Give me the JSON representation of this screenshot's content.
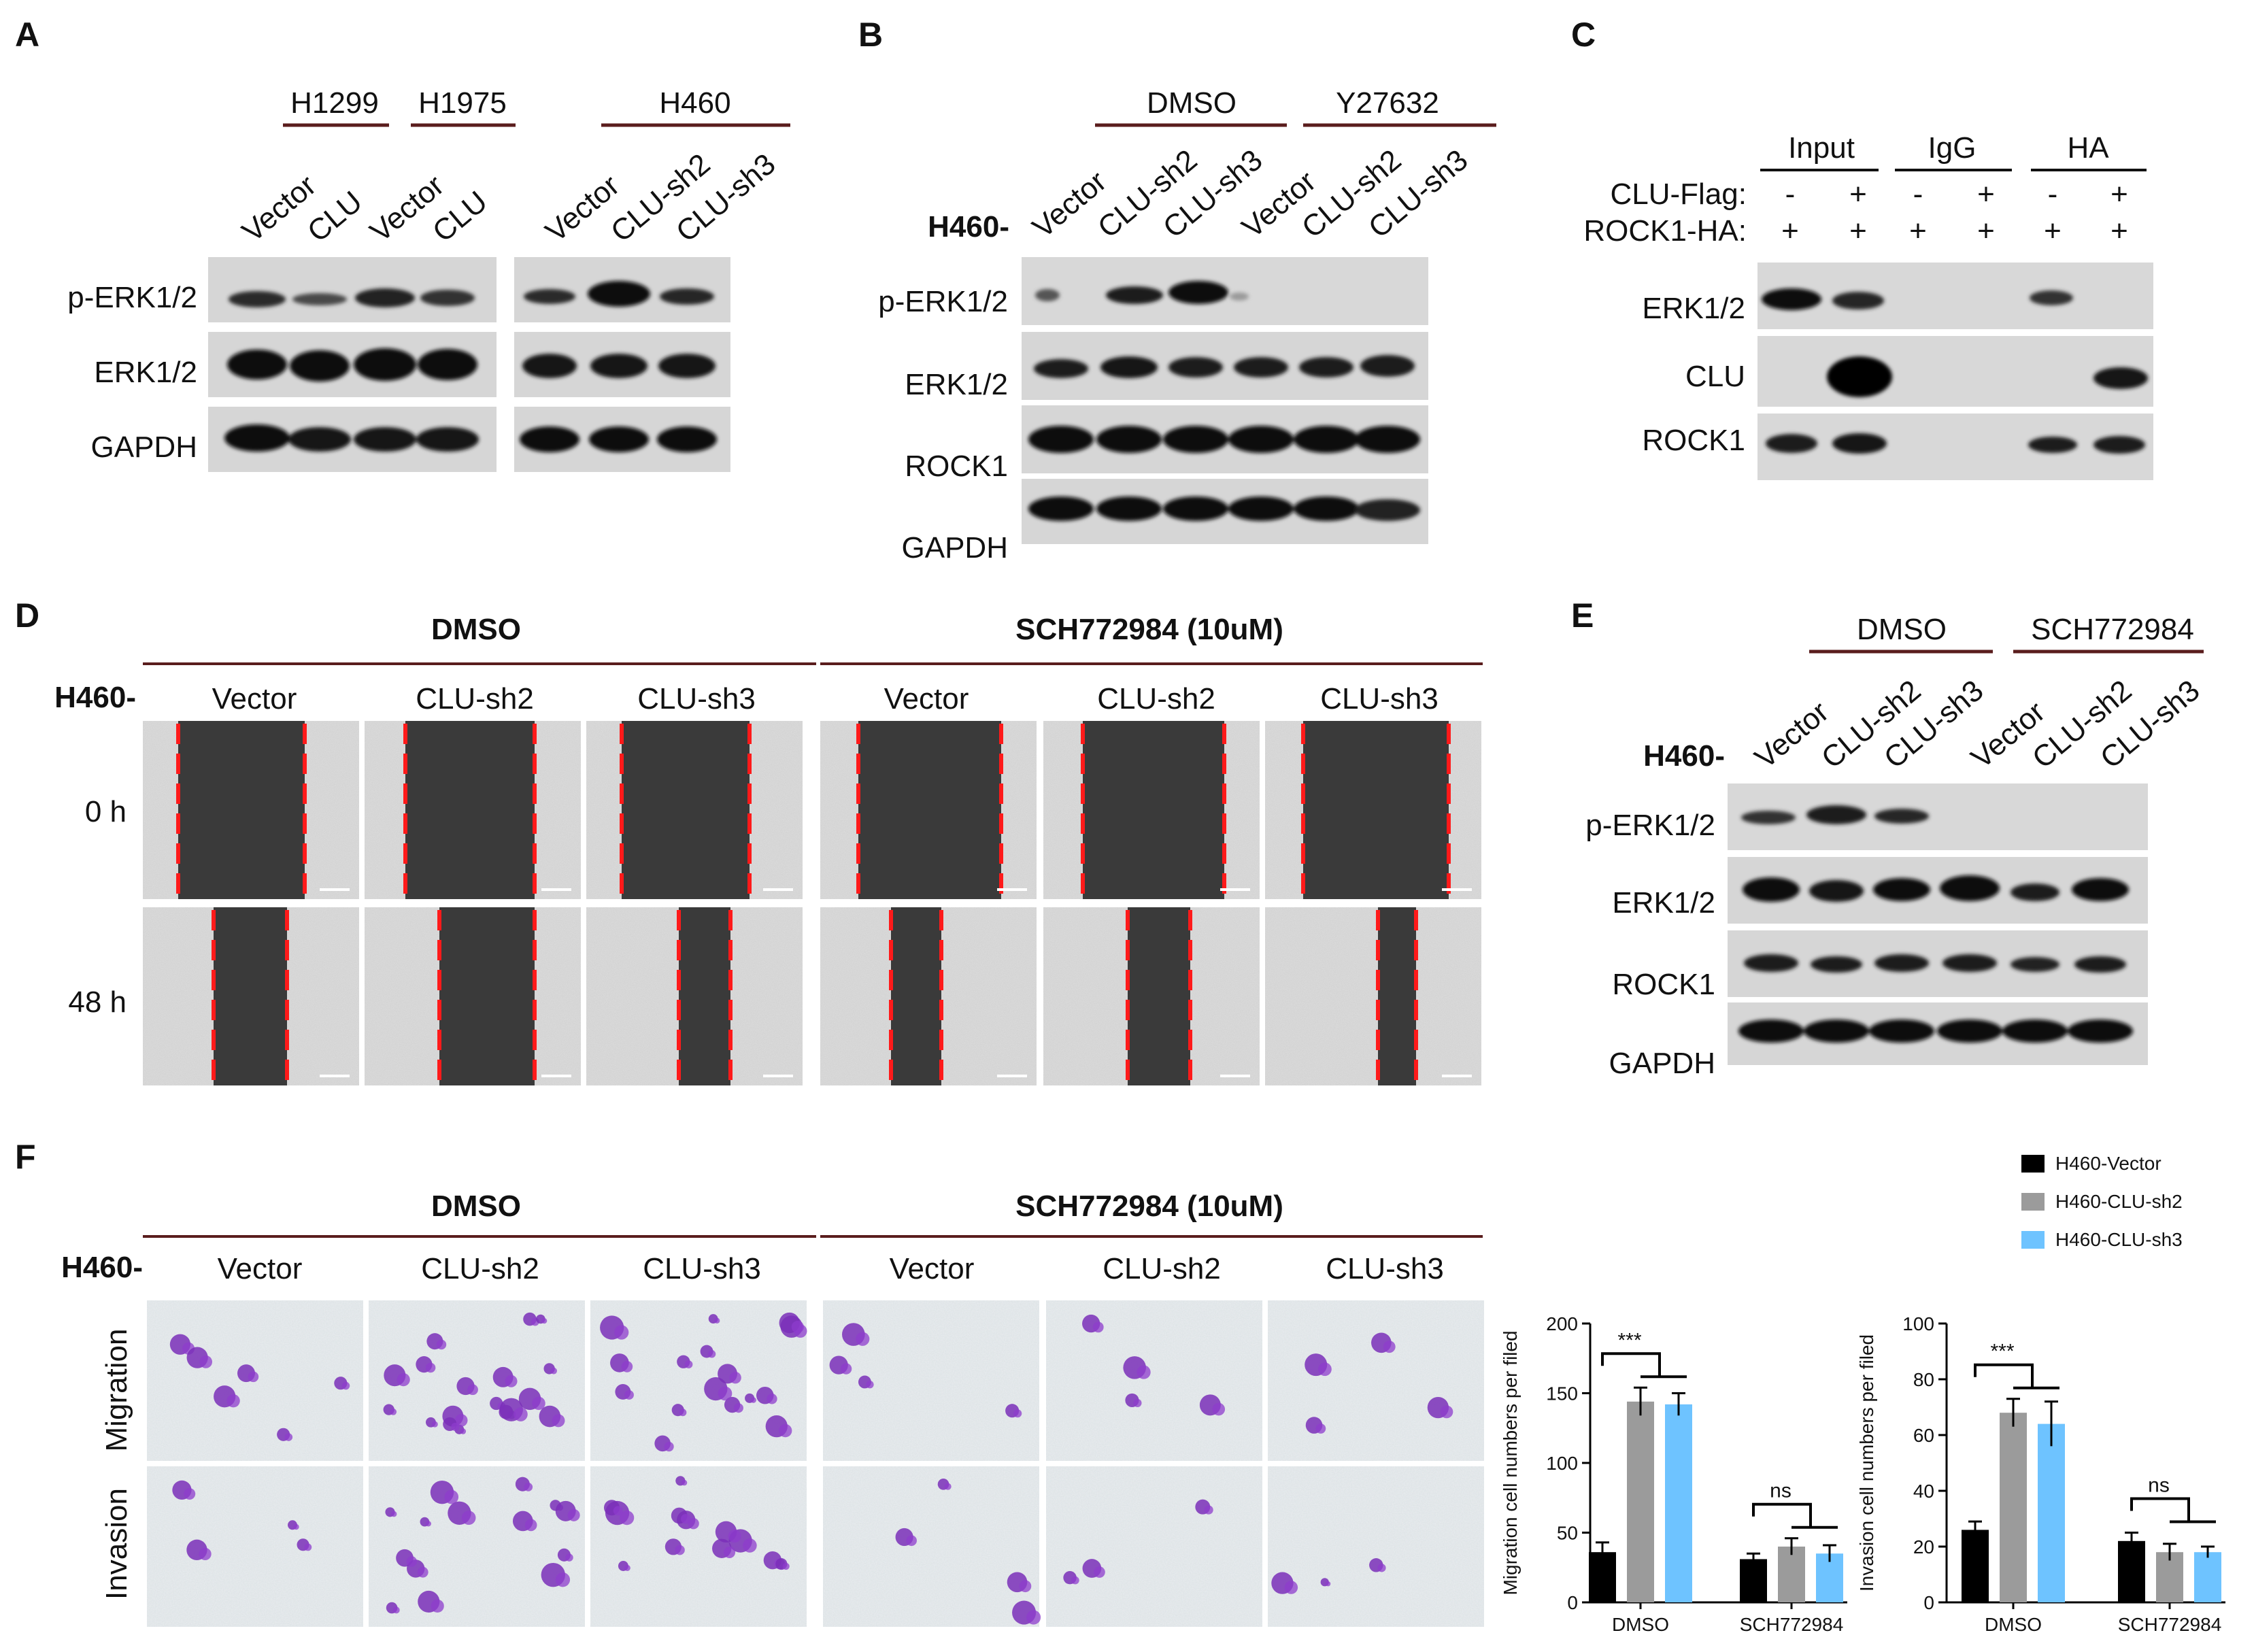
{
  "panel_labels": {
    "a": "A",
    "b": "B",
    "c": "C",
    "d": "D",
    "e": "E",
    "f": "F"
  },
  "panel_a": {
    "groups": [
      "H1299",
      "H1975",
      "H460"
    ],
    "lanes": [
      "Vector",
      "CLU",
      "Vector",
      "CLU",
      "Vector",
      "CLU-sh2",
      "CLU-sh3"
    ],
    "rows": [
      "p-ERK1/2",
      "ERK1/2",
      "GAPDH"
    ]
  },
  "panel_b": {
    "cell_prefix": "H460-",
    "groups": [
      "DMSO",
      "Y27632"
    ],
    "lanes": [
      "Vector",
      "CLU-sh2",
      "CLU-sh3",
      "Vector",
      "CLU-sh2",
      "CLU-sh3"
    ],
    "rows": [
      "p-ERK1/2",
      "ERK1/2",
      "ROCK1",
      "GAPDH"
    ]
  },
  "panel_c": {
    "groups": [
      "Input",
      "IgG",
      "HA"
    ],
    "conditions": [
      {
        "label": "CLU-Flag:",
        "values": [
          "-",
          "+",
          "-",
          "+",
          "-",
          "+"
        ]
      },
      {
        "label": "ROCK1-HA:",
        "values": [
          "+",
          "+",
          "+",
          "+",
          "+",
          "+"
        ]
      }
    ],
    "rows": [
      "ERK1/2",
      "CLU",
      "ROCK1"
    ]
  },
  "panel_d": {
    "cell_prefix": "H460-",
    "groups": [
      "DMSO",
      "SCH772984 (10uM)"
    ],
    "columns": [
      "Vector",
      "CLU-sh2",
      "CLU-sh3",
      "Vector",
      "CLU-sh2",
      "CLU-sh3"
    ],
    "rows": [
      "0 h",
      "48 h"
    ]
  },
  "panel_e": {
    "cell_prefix": "H460-",
    "groups": [
      "DMSO",
      "SCH772984"
    ],
    "lanes": [
      "Vector",
      "CLU-sh2",
      "CLU-sh3",
      "Vector",
      "CLU-sh2",
      "CLU-sh3"
    ],
    "rows": [
      "p-ERK1/2",
      "ERK1/2",
      "ROCK1",
      "GAPDH"
    ]
  },
  "panel_f": {
    "cell_prefix": "H460-",
    "groups": [
      "DMSO",
      "SCH772984 (10uM)"
    ],
    "columns": [
      "Vector",
      "CLU-sh2",
      "CLU-sh3",
      "Vector",
      "CLU-sh2",
      "CLU-sh3"
    ],
    "rows": [
      "Migration",
      "Invasion"
    ],
    "legend": [
      {
        "label": "H460-Vector",
        "color": "#000000"
      },
      {
        "label": "H460-CLU-sh2",
        "color": "#9b9b9b"
      },
      {
        "label": "H460-CLU-sh3",
        "color": "#6ec3ff"
      }
    ]
  },
  "chart_data": [
    {
      "type": "bar",
      "ylabel": "Migration cell numbers per filed",
      "categories": [
        "DMSO",
        "SCH772984"
      ],
      "ylim": [
        0,
        200
      ],
      "yticks": [
        "0",
        "50",
        "100",
        "150",
        "200"
      ],
      "series": [
        {
          "name": "H460-Vector",
          "values": [
            36,
            31
          ],
          "errors": [
            7,
            4
          ]
        },
        {
          "name": "H460-CLU-sh2",
          "values": [
            144,
            40
          ],
          "errors": [
            10,
            6
          ]
        },
        {
          "name": "H460-CLU-sh3",
          "values": [
            142,
            35
          ],
          "errors": [
            8,
            6
          ]
        }
      ],
      "significance": [
        "***",
        "ns"
      ]
    },
    {
      "type": "bar",
      "ylabel": "Invasion cell numbers per filed",
      "categories": [
        "DMSO",
        "SCH772984"
      ],
      "ylim": [
        0,
        100
      ],
      "yticks": [
        "0",
        "20",
        "40",
        "60",
        "80",
        "100"
      ],
      "series": [
        {
          "name": "H460-Vector",
          "values": [
            26,
            22
          ],
          "errors": [
            3,
            3
          ]
        },
        {
          "name": "H460-CLU-sh2",
          "values": [
            68,
            18
          ],
          "errors": [
            5,
            3
          ]
        },
        {
          "name": "H460-CLU-sh3",
          "values": [
            64,
            18
          ],
          "errors": [
            8,
            2
          ]
        }
      ],
      "significance": [
        "***",
        "ns"
      ]
    }
  ]
}
